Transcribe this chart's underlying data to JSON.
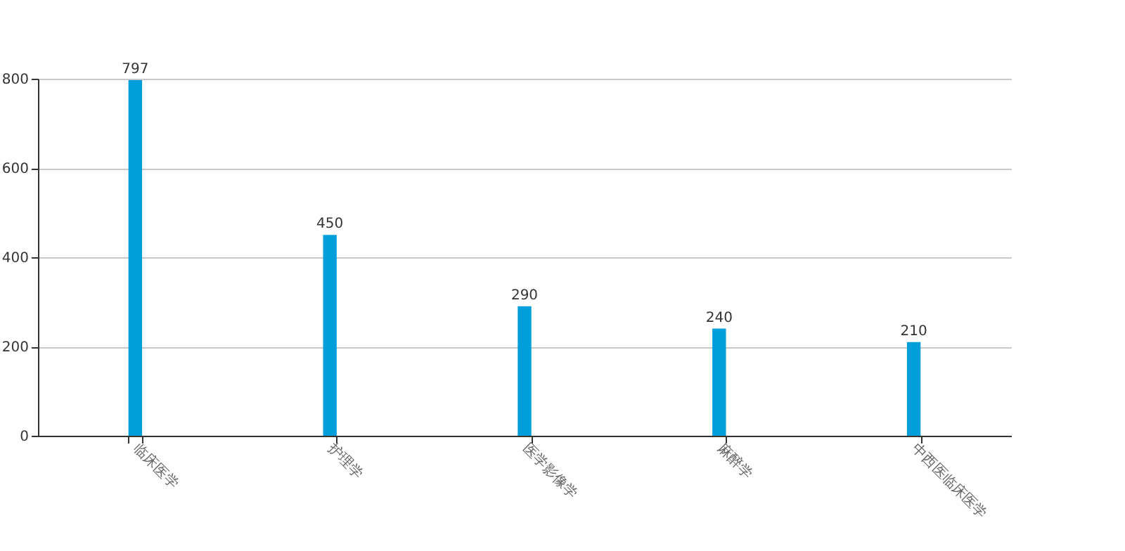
{
  "chart_data": {
    "type": "bar",
    "categories": [
      "临床医学",
      "护理学",
      "医学影像学",
      "麻醉学",
      "中西医临床医学"
    ],
    "values": [
      797,
      450,
      290,
      240,
      210
    ],
    "color": "#009fdb",
    "ylim": [
      0,
      800
    ],
    "yticks": [
      0,
      200,
      400,
      600,
      800
    ],
    "grid": "y",
    "data_labels": true
  }
}
